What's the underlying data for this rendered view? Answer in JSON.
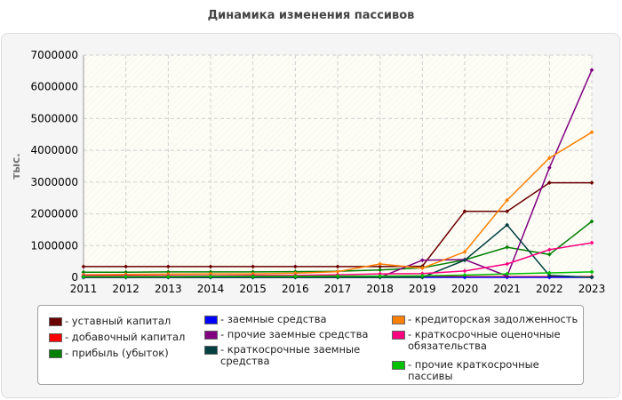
{
  "chart_data": {
    "type": "line",
    "title": "Динамика изменения пассивов",
    "ylabel": "тыс.",
    "xlabel": "",
    "x": [
      "2011",
      "2012",
      "2013",
      "2014",
      "2015",
      "2016",
      "2017",
      "2018",
      "2019",
      "2020",
      "2021",
      "2022",
      "2023"
    ],
    "ylim": [
      0,
      7000000
    ],
    "yticks": [
      "0",
      "1000000",
      "2000000",
      "3000000",
      "4000000",
      "5000000",
      "6000000",
      "7000000"
    ],
    "grid": true,
    "legend_position": "bottom",
    "series": [
      {
        "name": "- уставный капитал",
        "color": "#6b0000",
        "values": [
          340000,
          340000,
          340000,
          340000,
          340000,
          340000,
          340000,
          340000,
          350000,
          2080000,
          2080000,
          2980000,
          2980000
        ]
      },
      {
        "name": "- добавочный капитал",
        "color": "#ff0000",
        "values": [
          20000,
          20000,
          20000,
          20000,
          20000,
          20000,
          20000,
          20000,
          20000,
          20000,
          20000,
          20000,
          20000
        ]
      },
      {
        "name": "- прибыль (убыток)",
        "color": "#008000",
        "values": [
          160000,
          160000,
          170000,
          170000,
          170000,
          180000,
          190000,
          230000,
          300000,
          550000,
          950000,
          720000,
          1760000
        ]
      },
      {
        "name": "- заемные средства",
        "color": "#0000ff",
        "values": [
          0,
          0,
          0,
          0,
          0,
          0,
          0,
          0,
          0,
          0,
          0,
          0,
          0
        ]
      },
      {
        "name": "- прочие заемные средства",
        "color": "#800080",
        "values": [
          0,
          0,
          0,
          0,
          0,
          0,
          0,
          0,
          540000,
          560000,
          40000,
          3450000,
          6530000
        ]
      },
      {
        "name": "- краткосрочные заемные\nсредства",
        "color": "#004040",
        "values": [
          0,
          0,
          0,
          0,
          0,
          0,
          0,
          0,
          0,
          540000,
          1650000,
          60000,
          0
        ]
      },
      {
        "name": "- кредиторская задолженность",
        "color": "#ff8000",
        "values": [
          80000,
          90000,
          100000,
          110000,
          110000,
          130000,
          180000,
          420000,
          290000,
          800000,
          2430000,
          3760000,
          4570000
        ]
      },
      {
        "name": "- краткосрочные оценочные\nобязательства",
        "color": "#ff0080",
        "values": [
          50000,
          50000,
          50000,
          50000,
          60000,
          60000,
          80000,
          110000,
          120000,
          200000,
          420000,
          870000,
          1090000
        ]
      },
      {
        "name": "- прочие краткосрочные\nпассивы",
        "color": "#00c000",
        "values": [
          20000,
          20000,
          20000,
          30000,
          30000,
          30000,
          40000,
          40000,
          50000,
          70000,
          110000,
          140000,
          170000
        ]
      }
    ]
  }
}
